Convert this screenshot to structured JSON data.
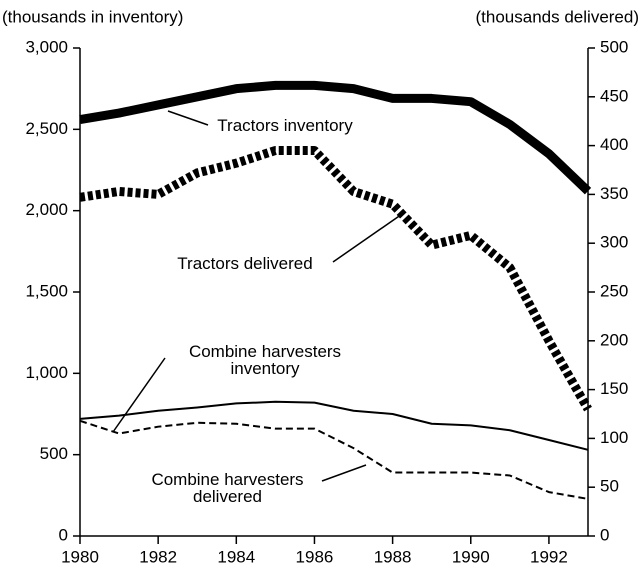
{
  "chart_data": {
    "type": "line",
    "y_label": "(thousands in inventory)",
    "y2_label": "(thousands delivered)",
    "x": [
      1980,
      1981,
      1982,
      1983,
      1984,
      1985,
      1986,
      1987,
      1988,
      1989,
      1990,
      1991,
      1992,
      1993
    ],
    "xlim": [
      1980,
      1993
    ],
    "xticks": [
      1980,
      1982,
      1984,
      1986,
      1988,
      1990,
      1992
    ],
    "ylim": [
      0,
      3000
    ],
    "yticks": [
      0,
      500,
      {
        "value": 1000,
        "label": "1,000"
      },
      {
        "value": 1500,
        "label": "1,500"
      },
      {
        "value": 2000,
        "label": "2,000"
      },
      {
        "value": 2500,
        "label": "2,500"
      },
      {
        "value": 3000,
        "label": "3,000"
      }
    ],
    "y2lim": [
      0,
      500
    ],
    "y2ticks": [
      0,
      50,
      100,
      150,
      200,
      250,
      300,
      350,
      400,
      450,
      500
    ],
    "series": [
      {
        "name": "Tractors inventory",
        "color": "#000000",
        "style": "solid",
        "weight": "heavy",
        "values": [
          2560,
          2600,
          2650,
          2700,
          2750,
          2770,
          2770,
          2750,
          2690,
          2690,
          2670,
          2530,
          2350,
          2120
        ]
      },
      {
        "name": "Tractors delivered",
        "color": "#000000",
        "style": "dotted",
        "weight": "heavy",
        "axis": "y2",
        "values": [
          347,
          353,
          350,
          372,
          382,
          395,
          395,
          353,
          340,
          298,
          308,
          275,
          200,
          130
        ]
      },
      {
        "name": "Combine harvesters inventory",
        "color": "#000000",
        "style": "solid",
        "weight": "light",
        "values": [
          720,
          740,
          770,
          790,
          815,
          825,
          820,
          770,
          750,
          690,
          680,
          650,
          590,
          530
        ]
      },
      {
        "name": "Combine harvesters delivered",
        "color": "#000000",
        "style": "dashed",
        "weight": "light",
        "axis": "y2",
        "values": [
          118,
          105,
          112,
          116,
          115,
          110,
          110,
          90,
          65,
          65,
          65,
          62,
          45,
          38
        ]
      }
    ]
  }
}
